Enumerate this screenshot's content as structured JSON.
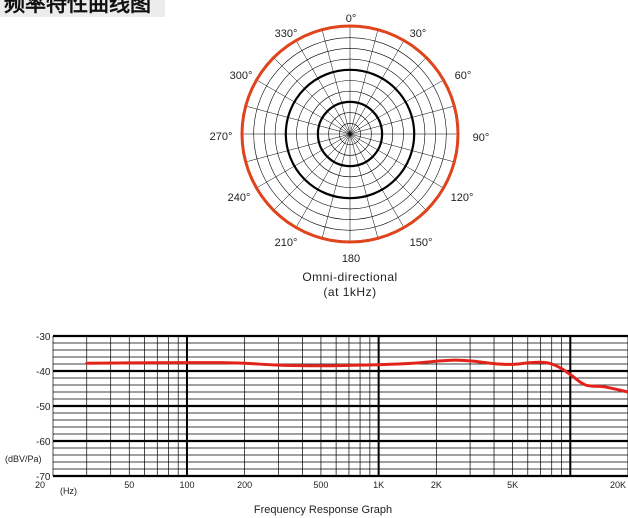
{
  "header": {
    "title": "频率特性曲线图"
  },
  "colors": {
    "response": "#e2231a",
    "polar_pattern": "#e0441c",
    "grid": "#000000"
  },
  "chart_data": [
    {
      "type": "polar",
      "caption_line1": "Omni-directional",
      "caption_line2": "(at 1kHz)",
      "angle_labels": [
        "0°",
        "30°",
        "60°",
        "90°",
        "120°",
        "150°",
        "180",
        "210°",
        "240°",
        "270°",
        "300°",
        "330°"
      ],
      "pattern": {
        "angles_deg": [
          0,
          30,
          60,
          90,
          120,
          150,
          180,
          210,
          240,
          270,
          300,
          330
        ],
        "relative_level": [
          1,
          1,
          1,
          1,
          1,
          1,
          1,
          1,
          1,
          1,
          1,
          1
        ]
      }
    },
    {
      "type": "line",
      "title": "Frequency Response Graph",
      "xlabel": "(Hz)",
      "ylabel": "(dBV/Pa)",
      "x_scale": "log",
      "xlim": [
        20,
        20000
      ],
      "ylim": [
        -70,
        -30
      ],
      "x_tick_labels": [
        "20",
        "50",
        "100",
        "200",
        "500",
        "1K",
        "2K",
        "5K",
        "20K"
      ],
      "y_tick_labels": [
        "-30",
        "-40",
        "-50",
        "-60",
        "-70"
      ],
      "grid": true,
      "series": [
        {
          "x": [
            30,
            50,
            100,
            150,
            200,
            300,
            500,
            700,
            1000,
            1500,
            2000,
            2500,
            3000,
            4000,
            5000,
            6000,
            7000,
            8000,
            9000,
            10000,
            12000,
            15000,
            20000
          ],
          "y": [
            -37.8,
            -37.7,
            -37.6,
            -37.6,
            -37.8,
            -38.3,
            -38.5,
            -38.4,
            -38.2,
            -37.8,
            -37.2,
            -36.9,
            -37.1,
            -37.9,
            -38.1,
            -37.7,
            -37.5,
            -38.0,
            -39.3,
            -41.0,
            -44.0,
            -44.5,
            -46.0
          ]
        }
      ]
    }
  ]
}
